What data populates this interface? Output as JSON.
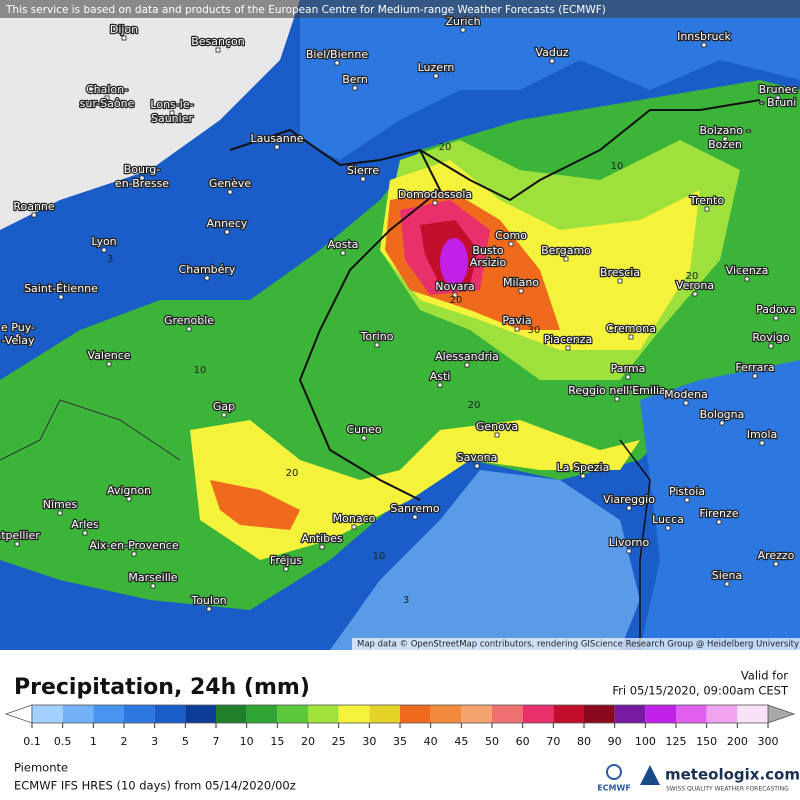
{
  "header": {
    "notice": "This service is based on data and products of the European Centre for Medium-range Weather Forecasts (ECMWF)"
  },
  "map": {
    "cities": [
      "Dijon",
      "Besançon",
      "Zurich",
      "Biel/Bienne",
      "Vaduz",
      "Innsbruck",
      "Luzern",
      "Bern",
      "Chalon-",
      "sur-Saône",
      "Lons-le-",
      "Saunier",
      "Brunec",
      "- Bruni",
      "Lausanne",
      "Bolzano -",
      "Bozen",
      "Sierre",
      "Bourg-",
      "en-Bresse",
      "Genève",
      "Domodossola",
      "Trento",
      "Roanne",
      "Annecy",
      "Como",
      "Busto",
      "Arsizio",
      "Bergamo",
      "Lyon",
      "Aosta",
      "Chambéry",
      "Brescia",
      "Vicenza",
      "Saint-Étienne",
      "Milano",
      "Novara",
      "Verona",
      "Padova",
      "Grenoble",
      "Pavia",
      "Cremona",
      "Torino",
      "Piacenza",
      "Rovigo",
      "e Puy-",
      "-Velay",
      "Valence",
      "Alessandria",
      "Parma",
      "Ferrara",
      "Asti",
      "Reggio nell'Emilia",
      "Modena",
      "Gap",
      "Bologna",
      "Imola",
      "Cuneo",
      "Genova",
      "Savona",
      "La Spezia",
      "Avignon",
      "Nîmes",
      "Viareggio",
      "Pistoia",
      "Monaco",
      "Sanremo",
      "Arles",
      "Lucca",
      "Firenze",
      "ntpellier",
      "Aix-en-Provence",
      "Antibes",
      "Arezzo",
      "Fréjus",
      "Livorno",
      "Marseille",
      "Siena",
      "Toulon"
    ],
    "contour_labels": [
      20,
      20,
      30,
      10,
      20,
      10,
      20,
      20,
      10,
      3,
      3
    ],
    "attribution": "Map data © OpenStreetMap contributors, rendering GIScience Research Group @ Heidelberg University"
  },
  "footer": {
    "title": "Precipitation, 24h (mm)",
    "valid_label": "Valid for",
    "valid_time": "Fri 05/15/2020, 09:00am CEST",
    "legend": {
      "ticks": [
        0.1,
        0.5,
        1,
        2,
        3,
        5,
        7,
        10,
        15,
        20,
        25,
        30,
        35,
        40,
        45,
        50,
        60,
        70,
        80,
        90,
        100,
        125,
        150,
        200,
        300
      ],
      "colors": [
        "#a4d0ff",
        "#74b2f8",
        "#4894f0",
        "#2c78e0",
        "#1a5cc8",
        "#0c3c98",
        "#1f7f2a",
        "#2fa533",
        "#5cc83a",
        "#a2e23c",
        "#f4f23a",
        "#e4d428",
        "#f06a1e",
        "#f28a3e",
        "#f6a46e",
        "#f07072",
        "#e8306a",
        "#c00e2c",
        "#880a1c",
        "#761aa0",
        "#c020e8",
        "#e060f0",
        "#f0a4f0",
        "#f8e2f8"
      ],
      "under_color": "#ffffff",
      "over_color": "#a8a8a8"
    },
    "region": "Piemonte",
    "model": "ECMWF IFS HRES (10 days) from 05/14/2020/00z",
    "ecmwf_logo": "ECMWF",
    "brand": "meteologix.com",
    "tagline": "SWISS QUALITY WEATHER FORECASTING"
  }
}
